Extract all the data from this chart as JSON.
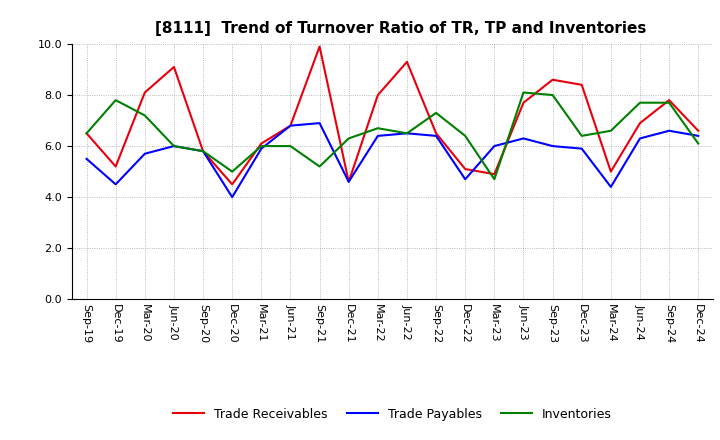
{
  "title": "[8111]  Trend of Turnover Ratio of TR, TP and Inventories",
  "labels": [
    "Sep-19",
    "Dec-19",
    "Mar-20",
    "Jun-20",
    "Sep-20",
    "Dec-20",
    "Mar-21",
    "Jun-21",
    "Sep-21",
    "Dec-21",
    "Mar-22",
    "Jun-22",
    "Sep-22",
    "Dec-22",
    "Mar-23",
    "Jun-23",
    "Sep-23",
    "Dec-23",
    "Mar-24",
    "Jun-24",
    "Sep-24",
    "Dec-24"
  ],
  "trade_receivables": [
    6.5,
    5.2,
    8.1,
    9.1,
    5.8,
    4.5,
    6.1,
    6.8,
    9.9,
    4.6,
    8.0,
    9.3,
    6.5,
    5.1,
    4.9,
    7.7,
    8.6,
    8.4,
    5.0,
    6.9,
    7.8,
    6.6
  ],
  "trade_payables": [
    5.5,
    4.5,
    5.7,
    6.0,
    5.8,
    4.0,
    5.9,
    6.8,
    6.9,
    4.6,
    6.4,
    6.5,
    6.4,
    4.7,
    6.0,
    6.3,
    6.0,
    5.9,
    4.4,
    6.3,
    6.6,
    6.4
  ],
  "inventories": [
    6.5,
    7.8,
    7.2,
    6.0,
    5.8,
    5.0,
    6.0,
    6.0,
    5.2,
    6.3,
    6.7,
    6.5,
    7.3,
    6.4,
    4.7,
    8.1,
    8.0,
    6.4,
    6.6,
    7.7,
    7.7,
    6.1
  ],
  "tr_color": "#e8000d",
  "tp_color": "#0000ff",
  "inv_color": "#008000",
  "ylim": [
    0.0,
    10.0
  ],
  "yticks": [
    0.0,
    2.0,
    4.0,
    6.0,
    8.0,
    10.0
  ],
  "legend_labels": [
    "Trade Receivables",
    "Trade Payables",
    "Inventories"
  ],
  "line_width": 1.5,
  "title_fontsize": 11,
  "tick_fontsize": 8,
  "legend_fontsize": 9
}
